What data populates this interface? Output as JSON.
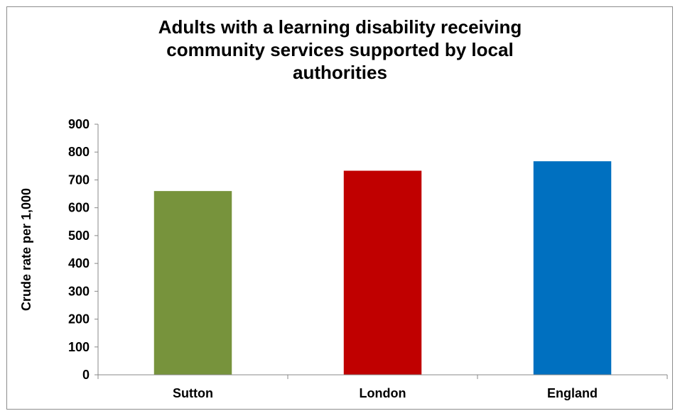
{
  "chart_data": {
    "type": "bar",
    "title_lines": [
      "Adults with a learning disability receiving",
      "community services supported by local",
      "authorities"
    ],
    "ylabel": "Crude rate per 1,000",
    "xlabel": "",
    "categories": [
      "Sutton",
      "London",
      "England"
    ],
    "values": [
      660,
      733,
      767
    ],
    "colors": [
      "#77933c",
      "#c00000",
      "#0070c0"
    ],
    "ylim": [
      0,
      900
    ],
    "yticks": [
      0,
      100,
      200,
      300,
      400,
      500,
      600,
      700,
      800,
      900
    ],
    "grid": false,
    "legend": "none"
  }
}
